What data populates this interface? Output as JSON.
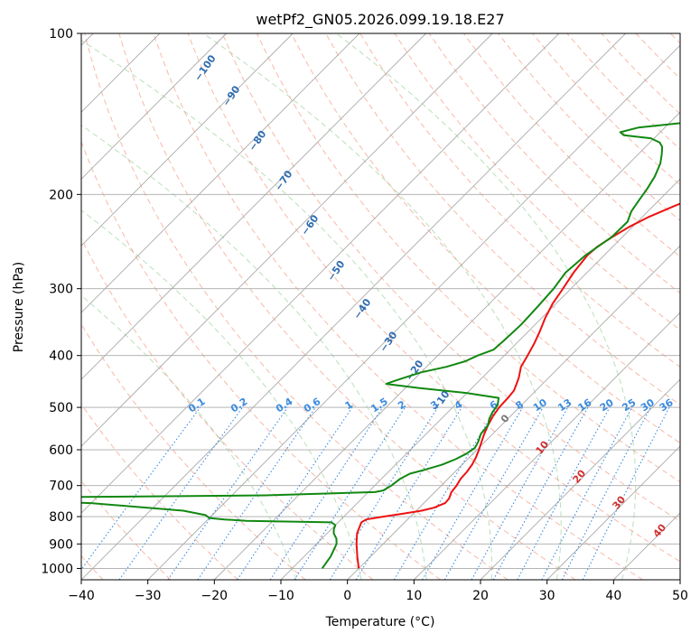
{
  "chart_data": {
    "type": "line",
    "subtype": "skew-t log-p diagram",
    "title": "wetPf2_GN05.2026.099.19.18.E27",
    "xlabel": "Temperature (°C)",
    "ylabel": "Pressure (hPa)",
    "xlim": [
      -40,
      50
    ],
    "ylim": [
      1050,
      100
    ],
    "y_scale": "log",
    "grid": true,
    "x_ticks": [
      -40,
      -30,
      -20,
      -10,
      0,
      10,
      20,
      30,
      40,
      50
    ],
    "x_tick_labels": [
      "−40",
      "−30",
      "−20",
      "−10",
      "0",
      "10",
      "20",
      "30",
      "40",
      "50"
    ],
    "y_ticks": [
      100,
      200,
      300,
      400,
      500,
      600,
      700,
      800,
      900,
      1000
    ],
    "y_tick_labels": [
      "100",
      "200",
      "300",
      "400",
      "500",
      "600",
      "700",
      "800",
      "900",
      "1000"
    ],
    "series": [
      {
        "key": "temperature",
        "color": "#ee1111",
        "points": [
          [
            1000,
            0
          ],
          [
            950,
            -2
          ],
          [
            900,
            -4
          ],
          [
            860,
            -5.5
          ],
          [
            820,
            -6.5
          ],
          [
            810,
            -6.2
          ],
          [
            800,
            -4
          ],
          [
            790,
            -1.5
          ],
          [
            780,
            0.8
          ],
          [
            770,
            2.2
          ],
          [
            755,
            3.2
          ],
          [
            740,
            3.1
          ],
          [
            720,
            2.5
          ],
          [
            700,
            2.3
          ],
          [
            680,
            1.9
          ],
          [
            660,
            1.8
          ],
          [
            640,
            1.5
          ],
          [
            620,
            1
          ],
          [
            600,
            0.3
          ],
          [
            580,
            -0.5
          ],
          [
            560,
            -1.3
          ],
          [
            540,
            -2
          ],
          [
            520,
            -2.6
          ],
          [
            500,
            -3
          ],
          [
            480,
            -3.1
          ],
          [
            465,
            -3.3
          ],
          [
            450,
            -4
          ],
          [
            440,
            -4.5
          ],
          [
            420,
            -5.8
          ],
          [
            400,
            -6.5
          ],
          [
            380,
            -7.3
          ],
          [
            360,
            -8.3
          ],
          [
            340,
            -9.5
          ],
          [
            320,
            -10.5
          ],
          [
            300,
            -11.2
          ],
          [
            280,
            -12
          ],
          [
            260,
            -12.5
          ],
          [
            250,
            -12.3
          ],
          [
            240,
            -11.5
          ],
          [
            230,
            -10.5
          ],
          [
            220,
            -9
          ],
          [
            210,
            -6.8
          ],
          [
            200,
            -4.2
          ],
          [
            190,
            -1
          ],
          [
            180,
            2
          ],
          [
            170,
            5.5
          ],
          [
            160,
            9.5
          ],
          [
            155,
            12
          ],
          [
            150,
            14.5
          ],
          [
            145,
            15.8
          ],
          [
            140,
            16.6
          ],
          [
            130,
            17.8
          ],
          [
            120,
            19.5
          ],
          [
            110,
            21.5
          ],
          [
            100,
            23
          ]
        ]
      },
      {
        "key": "dewpoint",
        "color": "#118811",
        "points": [
          [
            1000,
            -5.5
          ],
          [
            950,
            -6
          ],
          [
            900,
            -7
          ],
          [
            880,
            -7.8
          ],
          [
            860,
            -9
          ],
          [
            845,
            -9.6
          ],
          [
            830,
            -10
          ],
          [
            820,
            -11
          ],
          [
            815,
            -24
          ],
          [
            810,
            -27.5
          ],
          [
            805,
            -30
          ],
          [
            795,
            -31
          ],
          [
            780,
            -35
          ],
          [
            755,
            -50
          ],
          [
            740,
            -70
          ],
          [
            738,
            -68
          ],
          [
            730,
            -25
          ],
          [
            720,
            -9
          ],
          [
            715,
            -8
          ],
          [
            700,
            -7.5
          ],
          [
            680,
            -7.2
          ],
          [
            665,
            -6.5
          ],
          [
            655,
            -5
          ],
          [
            640,
            -3
          ],
          [
            625,
            -1.8
          ],
          [
            610,
            -1
          ],
          [
            595,
            -0.6
          ],
          [
            580,
            -1
          ],
          [
            560,
            -1.8
          ],
          [
            540,
            -2
          ],
          [
            525,
            -2.8
          ],
          [
            510,
            -3.3
          ],
          [
            495,
            -3.6
          ],
          [
            480,
            -4.5
          ],
          [
            470,
            -10
          ],
          [
            460,
            -18
          ],
          [
            452,
            -23.5
          ],
          [
            445,
            -22.5
          ],
          [
            430,
            -20
          ],
          [
            420,
            -17
          ],
          [
            410,
            -15
          ],
          [
            400,
            -14
          ],
          [
            390,
            -12.5
          ],
          [
            375,
            -12.3
          ],
          [
            350,
            -12.1
          ],
          [
            325,
            -12.3
          ],
          [
            300,
            -12.6
          ],
          [
            280,
            -13.2
          ],
          [
            260,
            -12.8
          ],
          [
            240,
            -11.6
          ],
          [
            225,
            -11.5
          ],
          [
            215,
            -12.5
          ],
          [
            205,
            -13
          ],
          [
            195,
            -13.5
          ],
          [
            185,
            -14.2
          ],
          [
            175,
            -15.3
          ],
          [
            168,
            -16.5
          ],
          [
            163,
            -17.5
          ],
          [
            160,
            -18.5
          ],
          [
            157,
            -20.5
          ],
          [
            155,
            -25
          ],
          [
            153,
            -26
          ],
          [
            150,
            -24
          ],
          [
            147,
            -18
          ],
          [
            143,
            -14
          ],
          [
            138,
            -12
          ],
          [
            130,
            -10.5
          ],
          [
            120,
            -8
          ],
          [
            110,
            -5
          ],
          [
            100,
            -0.2
          ]
        ]
      }
    ],
    "overlay_labels": {
      "dry_adiabats": [
        "−100",
        "−90",
        "−80",
        "−70",
        "−60",
        "−50",
        "−40",
        "−30",
        "−20",
        "−10"
      ],
      "mixing_ratio": [
        "0.1",
        "0.2",
        "0.4",
        "0.6",
        "1",
        "1.5",
        "2",
        "3",
        "4",
        "6",
        "8",
        "10",
        "13",
        "16",
        "20",
        "25",
        "30",
        "36"
      ],
      "moist_adiabats": [
        "0",
        "10",
        "20",
        "30",
        "40"
      ]
    },
    "colors": {
      "isotherm": "#aaaaaa",
      "dry_adiabat": "#f08060",
      "dry_adiabat_label": "#2f6db0",
      "moist_adiabat": "#66b866",
      "moist_adiabat_label": "#d03030",
      "mixing_ratio": "#3a8be0",
      "axis_text": "#000000"
    }
  }
}
